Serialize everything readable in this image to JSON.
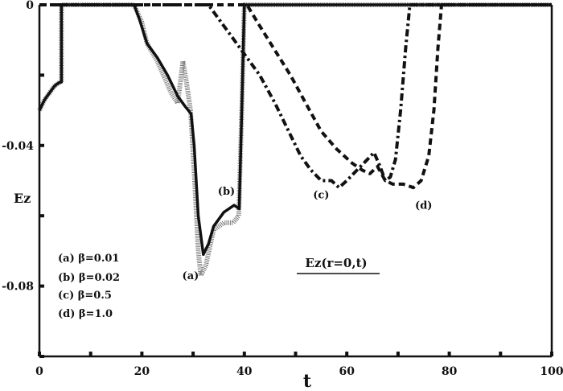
{
  "chart_data": {
    "type": "line",
    "title": "Ez(r=0,t)",
    "xlabel": "t",
    "ylabel": "Ez",
    "xlim": [
      0,
      100
    ],
    "ylim": [
      -0.1,
      0
    ],
    "x_ticks": [
      0,
      20,
      40,
      60,
      80,
      100
    ],
    "x_minor_ticks": [
      10,
      30,
      50,
      70,
      90
    ],
    "y_ticks": [
      0,
      -0.04,
      -0.08
    ],
    "y_tick_labels": [
      "0",
      "-0.04",
      "-0.08"
    ],
    "y_minor_ticks": [
      -0.02,
      -0.06,
      -0.1
    ],
    "grid": false,
    "legend": [
      {
        "key": "(a)",
        "text": "β=0.01"
      },
      {
        "key": "(b)",
        "text": "β=0.02"
      },
      {
        "key": "(c)",
        "text": "β=0.5"
      },
      {
        "key": "(d)",
        "text": "β=1.0"
      }
    ],
    "series": [
      {
        "name": "(a) β=0.01",
        "style": "hatched",
        "points": [
          [
            0,
            -0.03
          ],
          [
            1,
            -0.027
          ],
          [
            2,
            -0.025
          ],
          [
            3,
            -0.023
          ],
          [
            4,
            -0.022
          ],
          [
            4.3,
            -0.022
          ],
          [
            4.3,
            0
          ],
          [
            18.5,
            0
          ],
          [
            20,
            -0.005
          ],
          [
            21,
            -0.011
          ],
          [
            23,
            -0.016
          ],
          [
            24.5,
            -0.021
          ],
          [
            25.7,
            -0.025
          ],
          [
            27,
            -0.028
          ],
          [
            28,
            -0.016
          ],
          [
            28.7,
            -0.022
          ],
          [
            29.5,
            -0.03
          ],
          [
            30.3,
            -0.05
          ],
          [
            31,
            -0.07
          ],
          [
            31.5,
            -0.077
          ],
          [
            32.5,
            -0.074
          ],
          [
            34,
            -0.064
          ],
          [
            36,
            -0.062
          ],
          [
            37.8,
            -0.062
          ],
          [
            38.9,
            -0.06
          ],
          [
            39.5,
            -0.03
          ],
          [
            40,
            0
          ],
          [
            100,
            0
          ]
        ]
      },
      {
        "name": "(b) β=0.02",
        "style": "solid",
        "points": [
          [
            0,
            -0.03
          ],
          [
            1,
            -0.027
          ],
          [
            2,
            -0.025
          ],
          [
            3,
            -0.023
          ],
          [
            4,
            -0.022
          ],
          [
            4.3,
            -0.022
          ],
          [
            4.3,
            0
          ],
          [
            18.5,
            0
          ],
          [
            19.5,
            -0.004
          ],
          [
            21,
            -0.011
          ],
          [
            23,
            -0.015
          ],
          [
            25,
            -0.02
          ],
          [
            27,
            -0.026
          ],
          [
            28.5,
            -0.029
          ],
          [
            29.6,
            -0.031
          ],
          [
            30.2,
            -0.04
          ],
          [
            31,
            -0.06
          ],
          [
            32,
            -0.071
          ],
          [
            33,
            -0.068
          ],
          [
            34,
            -0.063
          ],
          [
            36,
            -0.059
          ],
          [
            38,
            -0.057
          ],
          [
            39,
            -0.058
          ],
          [
            39.5,
            -0.03
          ],
          [
            40,
            0
          ],
          [
            100,
            0
          ]
        ]
      },
      {
        "name": "(c) β=0.5",
        "style": "dash-dot",
        "points": [
          [
            0,
            0
          ],
          [
            33,
            0
          ],
          [
            35,
            -0.004
          ],
          [
            38,
            -0.01
          ],
          [
            40,
            -0.014
          ],
          [
            43,
            -0.02
          ],
          [
            46,
            -0.028
          ],
          [
            49,
            -0.037
          ],
          [
            51,
            -0.043
          ],
          [
            53,
            -0.047
          ],
          [
            55,
            -0.05
          ],
          [
            57,
            -0.05
          ],
          [
            58.5,
            -0.052
          ],
          [
            60,
            -0.05
          ],
          [
            62,
            -0.047
          ],
          [
            64,
            -0.044
          ],
          [
            65.3,
            -0.042
          ],
          [
            66.5,
            -0.046
          ],
          [
            67.5,
            -0.05
          ],
          [
            68.5,
            -0.049
          ],
          [
            69.5,
            -0.044
          ],
          [
            70.5,
            -0.03
          ],
          [
            71.5,
            -0.012
          ],
          [
            72.3,
            0
          ],
          [
            100,
            0
          ]
        ]
      },
      {
        "name": "(d) β=1.0",
        "style": "dashed",
        "points": [
          [
            0,
            0
          ],
          [
            40.5,
            0
          ],
          [
            43,
            -0.006
          ],
          [
            46,
            -0.013
          ],
          [
            49,
            -0.02
          ],
          [
            52,
            -0.028
          ],
          [
            55,
            -0.036
          ],
          [
            58,
            -0.041
          ],
          [
            61,
            -0.045
          ],
          [
            63,
            -0.047
          ],
          [
            64.5,
            -0.048
          ],
          [
            66,
            -0.046
          ],
          [
            67.5,
            -0.05
          ],
          [
            69,
            -0.051
          ],
          [
            71,
            -0.051
          ],
          [
            73,
            -0.052
          ],
          [
            74.5,
            -0.05
          ],
          [
            76,
            -0.043
          ],
          [
            77,
            -0.03
          ],
          [
            77.8,
            -0.012
          ],
          [
            78.5,
            0
          ],
          [
            100,
            0
          ]
        ]
      }
    ],
    "annotations": [
      {
        "text": "(a)",
        "t": 29.5,
        "ez": -0.078
      },
      {
        "text": "(b)",
        "t": 36.5,
        "ez": -0.054
      },
      {
        "text": "(c)",
        "t": 55,
        "ez": -0.055
      },
      {
        "text": "(d)",
        "t": 75,
        "ez": -0.058
      },
      {
        "text": "Ez(r=0,t)",
        "t": 53,
        "ez": -0.075,
        "underlined": true
      }
    ]
  },
  "labels": {
    "xlabel": "t",
    "ylabel": "Ez",
    "title": "Ez(r=0,t)",
    "legend": [
      "(a)  β=0.01",
      "(b)  β=0.02",
      "(c)  β=0.5",
      "(d)  β=1.0"
    ]
  }
}
